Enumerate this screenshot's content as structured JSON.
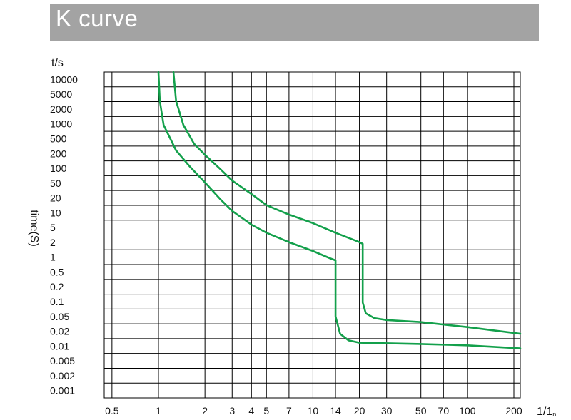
{
  "chart_data": {
    "type": "line",
    "title": "K curve",
    "xlabel": "1/1n",
    "ylabel": "time(S)",
    "y_unit": "t/s",
    "x_scale": "log",
    "y_scale": "log",
    "xlim": [
      0.4,
      250
    ],
    "ylim": [
      0.0006,
      20000
    ],
    "grid": true,
    "x_ticks": [
      0.5,
      1,
      2,
      3,
      4,
      5,
      7,
      10,
      14,
      20,
      30,
      50,
      70,
      100,
      200
    ],
    "x_tick_labels": [
      "0.5",
      "1",
      "2",
      "3",
      "4",
      "5",
      "7",
      "10",
      "14",
      "20",
      "30",
      "50",
      "70",
      "100",
      "200"
    ],
    "y_ticks": [
      10000,
      5000,
      2000,
      1000,
      500,
      200,
      100,
      50,
      20,
      10,
      5,
      2,
      1,
      0.5,
      0.2,
      0.1,
      0.05,
      0.02,
      0.01,
      0.005,
      0.002,
      0.001
    ],
    "y_tick_labels": [
      "10000",
      "5000",
      "2000",
      "1000",
      "500",
      "200",
      "100",
      "50",
      "20",
      "10",
      "5",
      "2",
      "1",
      "0.5",
      "0.2",
      "0.1",
      "0.05",
      "0.02",
      "0.01",
      "0.005",
      "0.002",
      "0.001"
    ],
    "color": "#13a04b",
    "series": [
      {
        "points": [
          [
            1.0,
            20000
          ],
          [
            1.02,
            3000
          ],
          [
            1.08,
            900
          ],
          [
            1.3,
            250
          ],
          [
            1.6,
            110
          ],
          [
            2.0,
            50
          ],
          [
            2.5,
            22
          ],
          [
            3.0,
            12
          ],
          [
            4.0,
            6
          ],
          [
            5.0,
            4
          ],
          [
            7.0,
            2.5
          ],
          [
            10,
            1.6
          ],
          [
            13,
            1.1
          ],
          [
            14,
            1.0
          ],
          [
            14,
            0.2
          ],
          [
            14,
            0.06
          ],
          [
            15,
            0.025
          ],
          [
            17,
            0.018
          ],
          [
            20,
            0.016
          ],
          [
            50,
            0.015
          ],
          [
            100,
            0.014
          ],
          [
            250,
            0.012
          ]
        ]
      },
      {
        "points": [
          [
            1.25,
            20000
          ],
          [
            1.3,
            3000
          ],
          [
            1.45,
            900
          ],
          [
            1.7,
            350
          ],
          [
            2.0,
            200
          ],
          [
            2.5,
            100
          ],
          [
            3.0,
            55
          ],
          [
            4.0,
            28
          ],
          [
            5.0,
            16
          ],
          [
            7.0,
            10
          ],
          [
            10,
            6.5
          ],
          [
            14,
            4
          ],
          [
            20,
            2.5
          ],
          [
            21,
            2.3
          ],
          [
            21,
            0.3
          ],
          [
            21,
            0.12
          ],
          [
            22,
            0.07
          ],
          [
            25,
            0.055
          ],
          [
            30,
            0.05
          ],
          [
            50,
            0.045
          ],
          [
            100,
            0.035
          ],
          [
            250,
            0.025
          ]
        ]
      }
    ]
  }
}
